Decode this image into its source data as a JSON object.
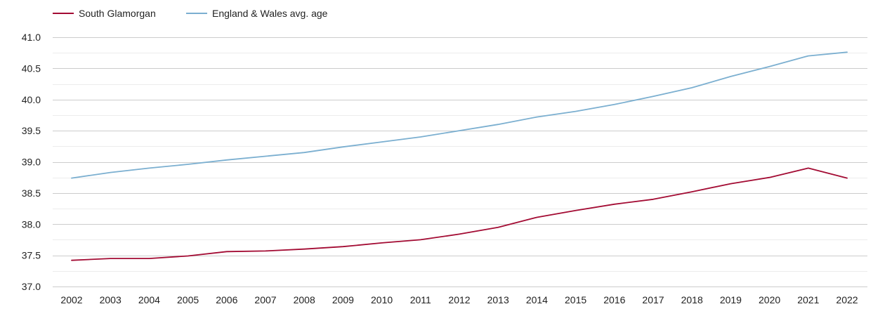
{
  "chart_data": {
    "type": "line",
    "title": "",
    "xlabel": "",
    "ylabel": "",
    "categories": [
      "2002",
      "2003",
      "2004",
      "2005",
      "2006",
      "2007",
      "2008",
      "2009",
      "2010",
      "2011",
      "2012",
      "2013",
      "2014",
      "2015",
      "2016",
      "2017",
      "2018",
      "2019",
      "2020",
      "2021",
      "2022"
    ],
    "ylim": [
      37.0,
      41.0
    ],
    "yticks": [
      "41.0",
      "40.5",
      "40.0",
      "39.5",
      "39.0",
      "38.5",
      "38.0",
      "37.5",
      "37.0"
    ],
    "grid": true,
    "legend_position": "top-left",
    "series": [
      {
        "name": "South Glamorgan",
        "color": "#a30b33",
        "values": [
          37.42,
          37.45,
          37.45,
          37.49,
          37.56,
          37.57,
          37.6,
          37.64,
          37.7,
          37.75,
          37.84,
          37.95,
          38.11,
          38.22,
          38.32,
          38.4,
          38.52,
          38.65,
          38.75,
          38.9,
          38.74
        ]
      },
      {
        "name": "England & Wales avg. age",
        "color": "#7bafd0",
        "values": [
          38.74,
          38.83,
          38.9,
          38.96,
          39.03,
          39.09,
          39.15,
          39.24,
          39.32,
          39.4,
          39.5,
          39.6,
          39.72,
          39.81,
          39.92,
          40.05,
          40.19,
          40.37,
          40.53,
          40.7,
          40.76
        ]
      }
    ]
  }
}
